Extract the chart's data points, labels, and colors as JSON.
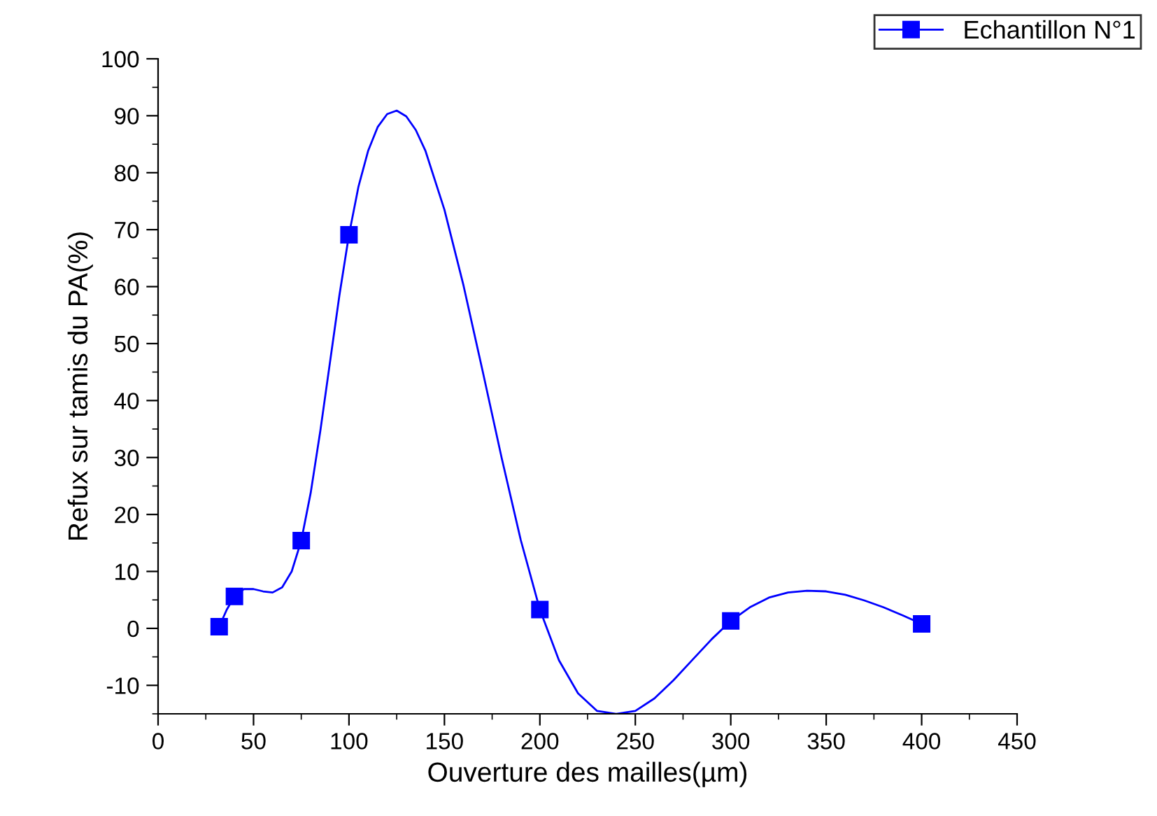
{
  "chart_data": {
    "type": "scatter",
    "xlabel": "Ouverture des mailles(µm)",
    "ylabel": "Refux sur tamis du PA(%)",
    "series": [
      {
        "type": "line",
        "marker": "none",
        "color": "#0000ff",
        "x": [
          32,
          36,
          40,
          45,
          50,
          55,
          60,
          65,
          70,
          75,
          80,
          85,
          90,
          95,
          100,
          105,
          110,
          115,
          120,
          125,
          130,
          135,
          140,
          150,
          160,
          170,
          180,
          190,
          200,
          210,
          220,
          230,
          240,
          250,
          260,
          270,
          280,
          290,
          300,
          310,
          320,
          330,
          340,
          350,
          360,
          370,
          380,
          390,
          400
        ],
        "values": [
          0.3,
          3.3,
          5.6,
          6.9,
          6.9,
          6.5,
          6.3,
          7.2,
          10.0,
          15.4,
          23.9,
          34.7,
          46.6,
          58.5,
          69.1,
          77.6,
          83.8,
          88.0,
          90.3,
          90.9,
          89.9,
          87.5,
          83.9,
          73.5,
          60.2,
          45.2,
          29.9,
          15.5,
          3.3,
          -5.6,
          -11.4,
          -14.5,
          -15,
          -14.5,
          -12.3,
          -9.1,
          -5.5,
          -1.9,
          1.3,
          3.7,
          5.4,
          6.3,
          6.6,
          6.5,
          5.9,
          4.9,
          3.7,
          2.3,
          0.8
        ]
      },
      {
        "marker": "square",
        "name": "Echantillon N°1",
        "color": "#0000ff",
        "x": [
          32,
          40,
          75,
          100,
          200,
          300,
          400
        ],
        "values": [
          0.3,
          5.6,
          15.4,
          69.1,
          3.3,
          1.3,
          0.8
        ]
      }
    ],
    "xlim": [
      0,
      450
    ],
    "xticks": [
      0,
      50,
      100,
      150,
      200,
      250,
      300,
      350,
      400,
      450
    ],
    "ylim": [
      -15,
      100
    ],
    "yticks": [
      -10,
      0,
      10,
      20,
      30,
      40,
      50,
      60,
      70,
      80,
      90,
      100
    ],
    "line_style": "solid",
    "legend": "top right"
  }
}
